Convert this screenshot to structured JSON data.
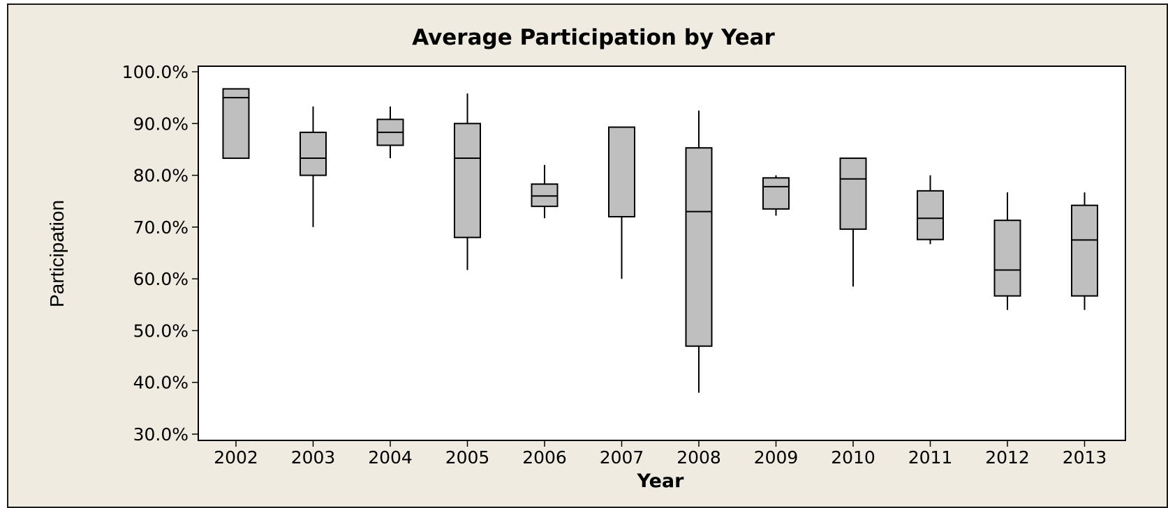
{
  "chart_data": {
    "type": "boxplot",
    "title": "Average Participation by Year",
    "xlabel": "Year",
    "ylabel": "Participation",
    "ylim": [
      0.3,
      1.0
    ],
    "yticks": [
      0.3,
      0.4,
      0.5,
      0.6,
      0.7,
      0.8,
      0.9,
      1.0
    ],
    "ytick_labels": [
      "30.0%",
      "40.0%",
      "50.0%",
      "60.0%",
      "70.0%",
      "80.0%",
      "90.0%",
      "100.0%"
    ],
    "grid": false,
    "categories": [
      "2002",
      "2003",
      "2004",
      "2005",
      "2006",
      "2007",
      "2008",
      "2009",
      "2010",
      "2011",
      "2012",
      "2013"
    ],
    "boxes": [
      {
        "x": "2002",
        "min": 0.833,
        "q1": 0.833,
        "median": 0.95,
        "q3": 0.967,
        "max": 0.967
      },
      {
        "x": "2003",
        "min": 0.7,
        "q1": 0.8,
        "median": 0.833,
        "q3": 0.883,
        "max": 0.933
      },
      {
        "x": "2004",
        "min": 0.833,
        "q1": 0.858,
        "median": 0.883,
        "q3": 0.908,
        "max": 0.933
      },
      {
        "x": "2005",
        "min": 0.617,
        "q1": 0.68,
        "median": 0.833,
        "q3": 0.9,
        "max": 0.958
      },
      {
        "x": "2006",
        "min": 0.717,
        "q1": 0.74,
        "median": 0.76,
        "q3": 0.783,
        "max": 0.82
      },
      {
        "x": "2007",
        "min": 0.6,
        "q1": 0.72,
        "median": 0.72,
        "q3": 0.893,
        "max": 0.893
      },
      {
        "x": "2008",
        "min": 0.38,
        "q1": 0.47,
        "median": 0.73,
        "q3": 0.853,
        "max": 0.925
      },
      {
        "x": "2009",
        "min": 0.722,
        "q1": 0.735,
        "median": 0.778,
        "q3": 0.795,
        "max": 0.8
      },
      {
        "x": "2010",
        "min": 0.585,
        "q1": 0.696,
        "median": 0.793,
        "q3": 0.833,
        "max": 0.833
      },
      {
        "x": "2011",
        "min": 0.667,
        "q1": 0.676,
        "median": 0.717,
        "q3": 0.77,
        "max": 0.8
      },
      {
        "x": "2012",
        "min": 0.54,
        "q1": 0.567,
        "median": 0.617,
        "q3": 0.713,
        "max": 0.767
      },
      {
        "x": "2013",
        "min": 0.54,
        "q1": 0.567,
        "median": 0.675,
        "q3": 0.742,
        "max": 0.767
      }
    ],
    "colors": {
      "background": "#efebe1",
      "plot_area": "#ffffff",
      "box_fill": "#bfbfbf",
      "stroke": "#000000"
    }
  }
}
